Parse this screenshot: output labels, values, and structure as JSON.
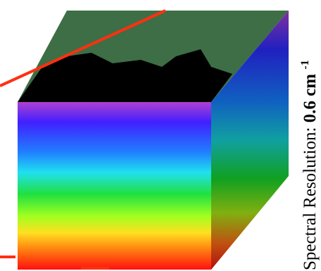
{
  "label": {
    "prefix": "Spectral Resolution:",
    "value": "0.6 cm",
    "superscript": "-1"
  }
}
